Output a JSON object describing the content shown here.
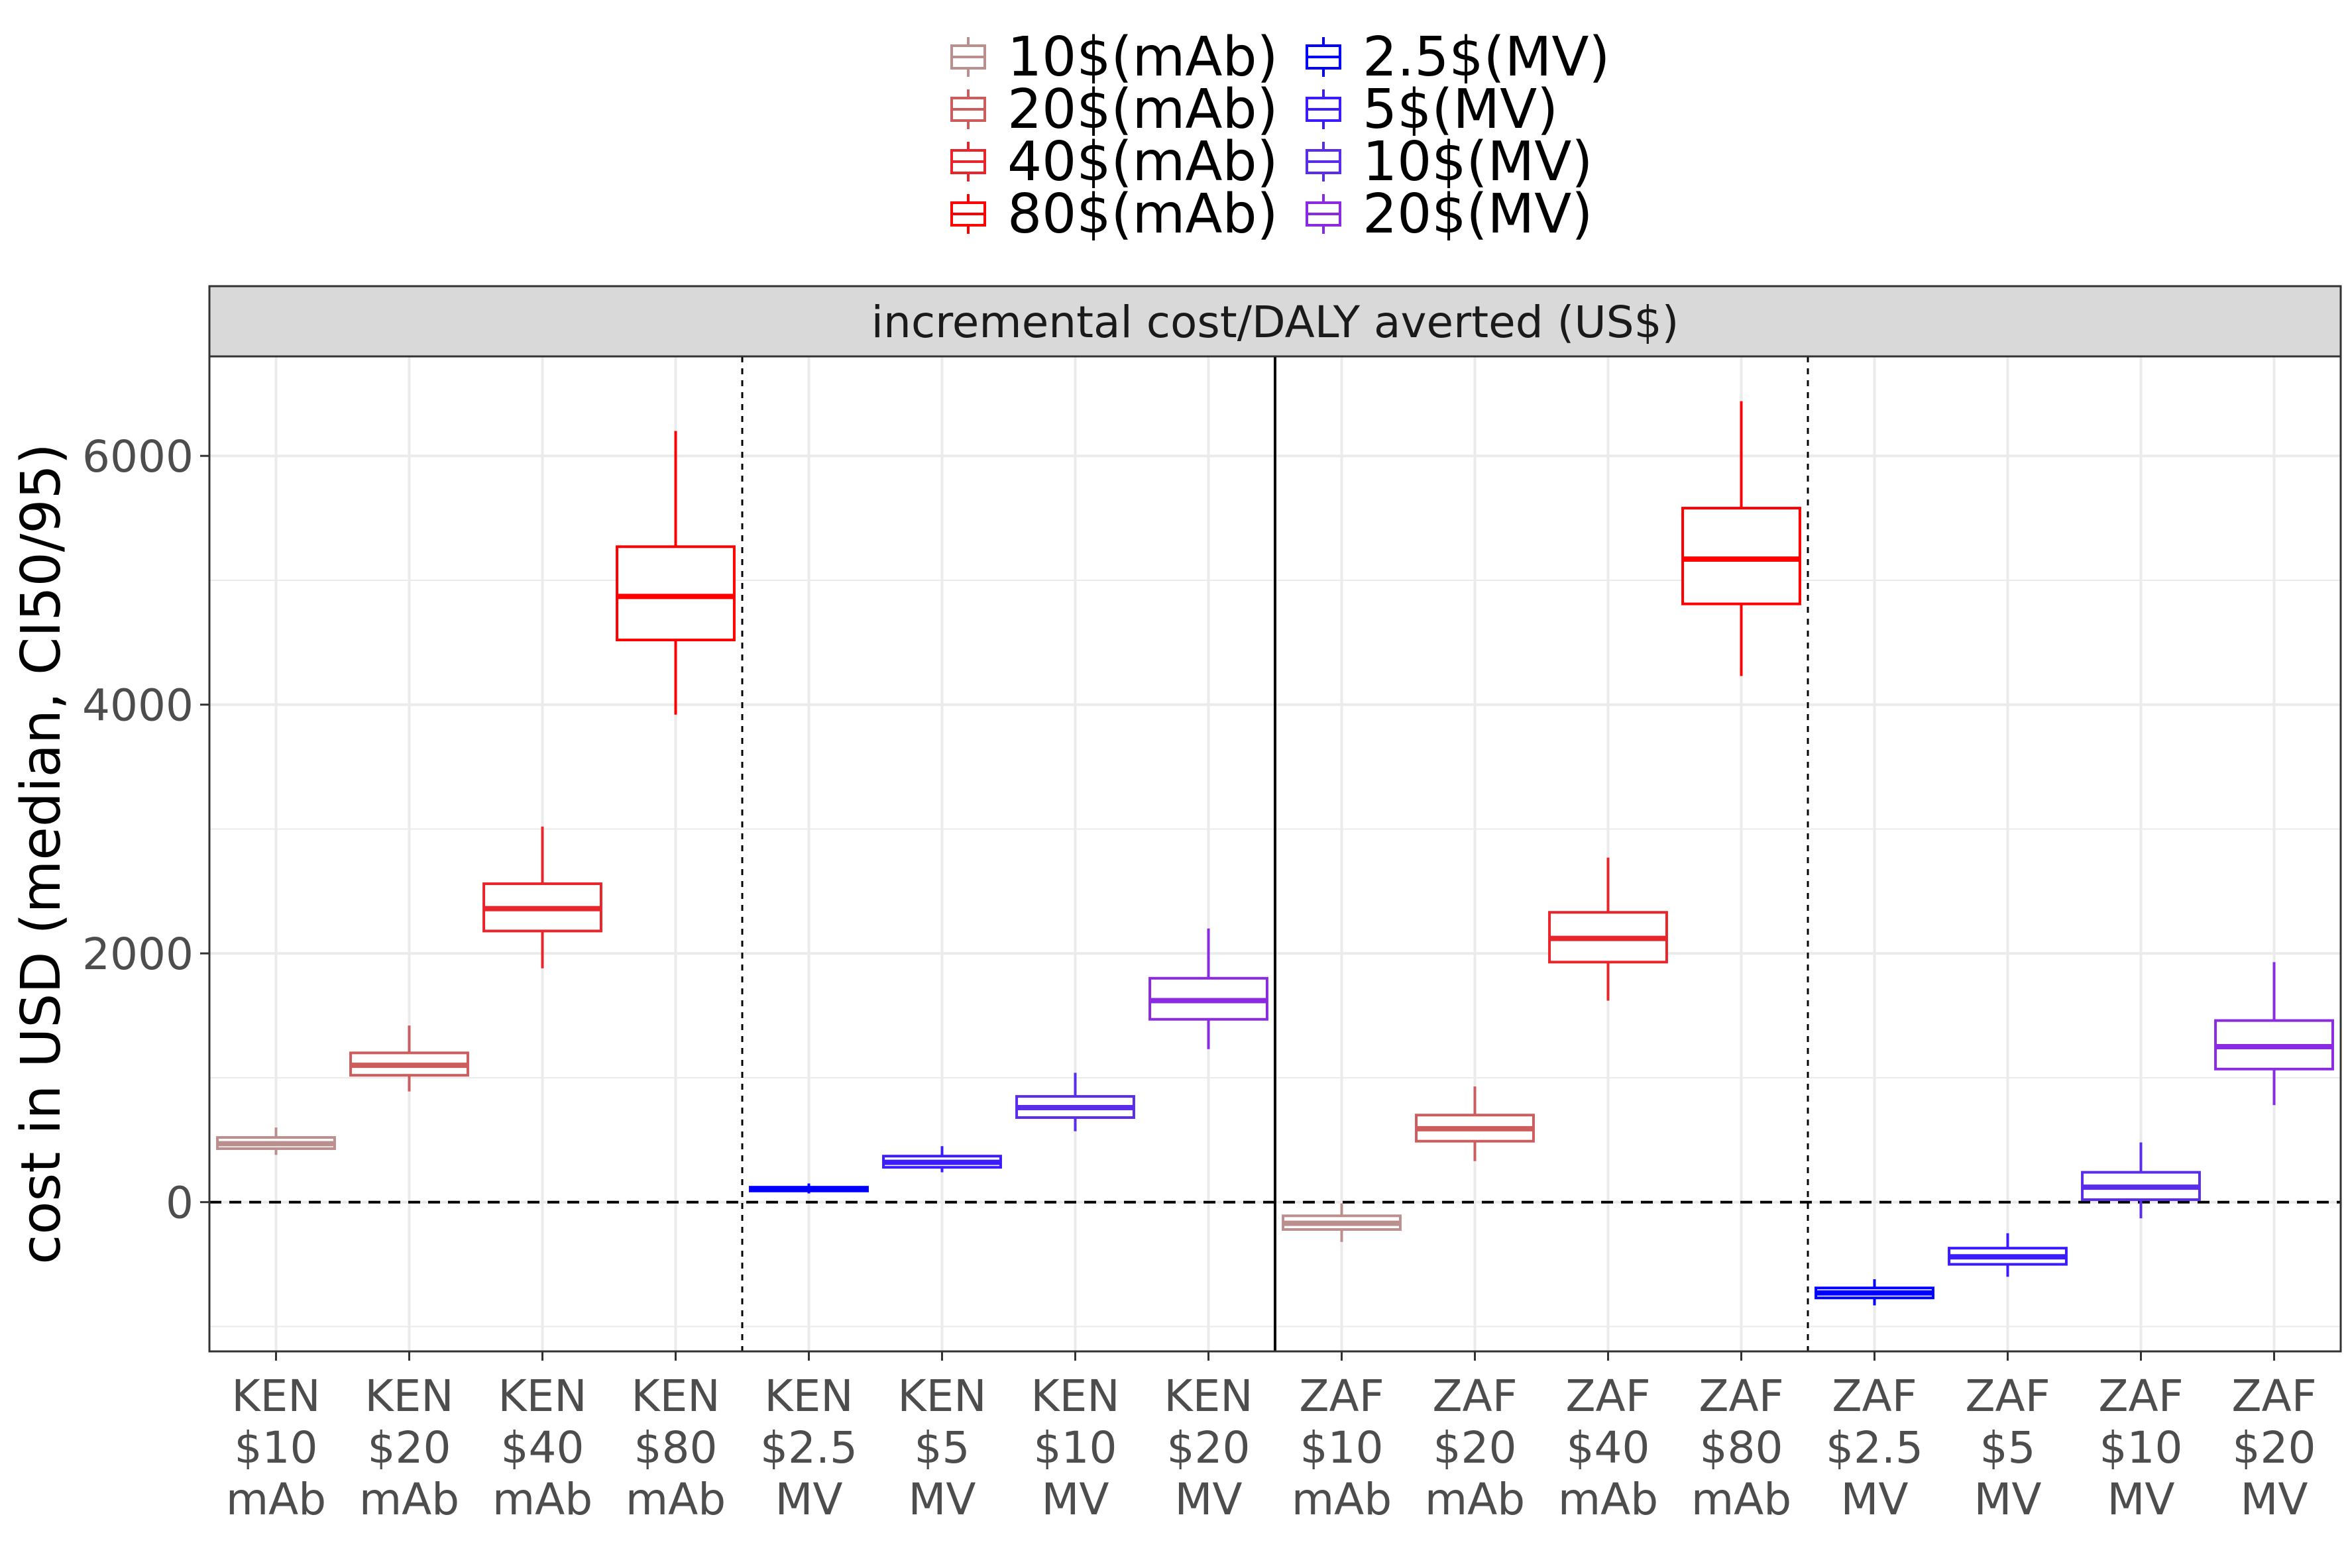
{
  "legend": [
    {
      "label": "10$(mAb)",
      "color": "#BC8F8F"
    },
    {
      "label": "2.5$(MV)",
      "color": "#0000FF"
    },
    {
      "label": "20$(mAb)",
      "color": "#CD5C5C"
    },
    {
      "label": "5$(MV)",
      "color": "#3B1CFF"
    },
    {
      "label": "40$(mAb)",
      "color": "#E8252B"
    },
    {
      "label": "10$(MV)",
      "color": "#5A2DEB"
    },
    {
      "label": "80$(mAb)",
      "color": "#FF0000"
    },
    {
      "label": "20$(MV)",
      "color": "#8A2BE2"
    }
  ],
  "chart_data": {
    "type": "boxplot",
    "title": "incremental cost/DALY averted (US$)",
    "ylabel": "cost in USD (median, CI50/95)",
    "xlabel": "",
    "ylim": [
      -1200,
      6800
    ],
    "yticks": [
      0,
      2000,
      4000,
      6000
    ],
    "grid": true,
    "legend_position": "top",
    "reference_line_y": 0,
    "categories": [
      {
        "lines": [
          "KEN",
          "$10",
          "mAb"
        ],
        "series": "10$(mAb)",
        "color": "#BC8F8F",
        "whisker_low": 380,
        "q1": 430,
        "median": 470,
        "q3": 520,
        "whisker_high": 600
      },
      {
        "lines": [
          "KEN",
          "$20",
          "mAb"
        ],
        "series": "20$(mAb)",
        "color": "#CD5C5C",
        "whisker_low": 890,
        "q1": 1020,
        "median": 1100,
        "q3": 1200,
        "whisker_high": 1420
      },
      {
        "lines": [
          "KEN",
          "$40",
          "mAb"
        ],
        "series": "40$(mAb)",
        "color": "#E8252B",
        "whisker_low": 1880,
        "q1": 2180,
        "median": 2360,
        "q3": 2560,
        "whisker_high": 3020
      },
      {
        "lines": [
          "KEN",
          "$80",
          "mAb"
        ],
        "series": "80$(mAb)",
        "color": "#FF0000",
        "whisker_low": 3920,
        "q1": 4520,
        "median": 4870,
        "q3": 5270,
        "whisker_high": 6200
      },
      {
        "lines": [
          "KEN",
          "$2.5",
          "MV"
        ],
        "series": "2.5$(MV)",
        "color": "#0000FF",
        "whisker_low": 70,
        "q1": 90,
        "median": 105,
        "q3": 120,
        "whisker_high": 150
      },
      {
        "lines": [
          "KEN",
          "$5",
          "MV"
        ],
        "series": "5$(MV)",
        "color": "#3B1CFF",
        "whisker_low": 240,
        "q1": 280,
        "median": 320,
        "q3": 370,
        "whisker_high": 450
      },
      {
        "lines": [
          "KEN",
          "$10",
          "MV"
        ],
        "series": "10$(MV)",
        "color": "#5A2DEB",
        "whisker_low": 570,
        "q1": 680,
        "median": 760,
        "q3": 850,
        "whisker_high": 1040
      },
      {
        "lines": [
          "KEN",
          "$20",
          "MV"
        ],
        "series": "20$(MV)",
        "color": "#8A2BE2",
        "whisker_low": 1230,
        "q1": 1470,
        "median": 1620,
        "q3": 1800,
        "whisker_high": 2200
      },
      {
        "lines": [
          "ZAF",
          "$10",
          "mAb"
        ],
        "series": "10$(mAb)",
        "color": "#BC8F8F",
        "whisker_low": -320,
        "q1": -220,
        "median": -170,
        "q3": -110,
        "whisker_high": -10
      },
      {
        "lines": [
          "ZAF",
          "$20",
          "mAb"
        ],
        "series": "20$(mAb)",
        "color": "#CD5C5C",
        "whisker_low": 330,
        "q1": 490,
        "median": 590,
        "q3": 700,
        "whisker_high": 930
      },
      {
        "lines": [
          "ZAF",
          "$40",
          "mAb"
        ],
        "series": "40$(mAb)",
        "color": "#E8252B",
        "whisker_low": 1620,
        "q1": 1930,
        "median": 2120,
        "q3": 2330,
        "whisker_high": 2770
      },
      {
        "lines": [
          "ZAF",
          "$80",
          "mAb"
        ],
        "series": "80$(mAb)",
        "color": "#FF0000",
        "whisker_low": 4230,
        "q1": 4810,
        "median": 5170,
        "q3": 5580,
        "whisker_high": 6440
      },
      {
        "lines": [
          "ZAF",
          "$2.5",
          "MV"
        ],
        "series": "2.5$(MV)",
        "color": "#0000FF",
        "whisker_low": -830,
        "q1": -770,
        "median": -730,
        "q3": -690,
        "whisker_high": -620
      },
      {
        "lines": [
          "ZAF",
          "$5",
          "MV"
        ],
        "series": "5$(MV)",
        "color": "#3B1CFF",
        "whisker_low": -600,
        "q1": -500,
        "median": -440,
        "q3": -370,
        "whisker_high": -250
      },
      {
        "lines": [
          "ZAF",
          "$10",
          "MV"
        ],
        "series": "10$(MV)",
        "color": "#5A2DEB",
        "whisker_low": -130,
        "q1": 20,
        "median": 120,
        "q3": 240,
        "whisker_high": 480
      },
      {
        "lines": [
          "ZAF",
          "$20",
          "MV"
        ],
        "series": "20$(MV)",
        "color": "#8A2BE2",
        "whisker_low": 780,
        "q1": 1070,
        "median": 1250,
        "q3": 1460,
        "whisker_high": 1930
      }
    ]
  }
}
